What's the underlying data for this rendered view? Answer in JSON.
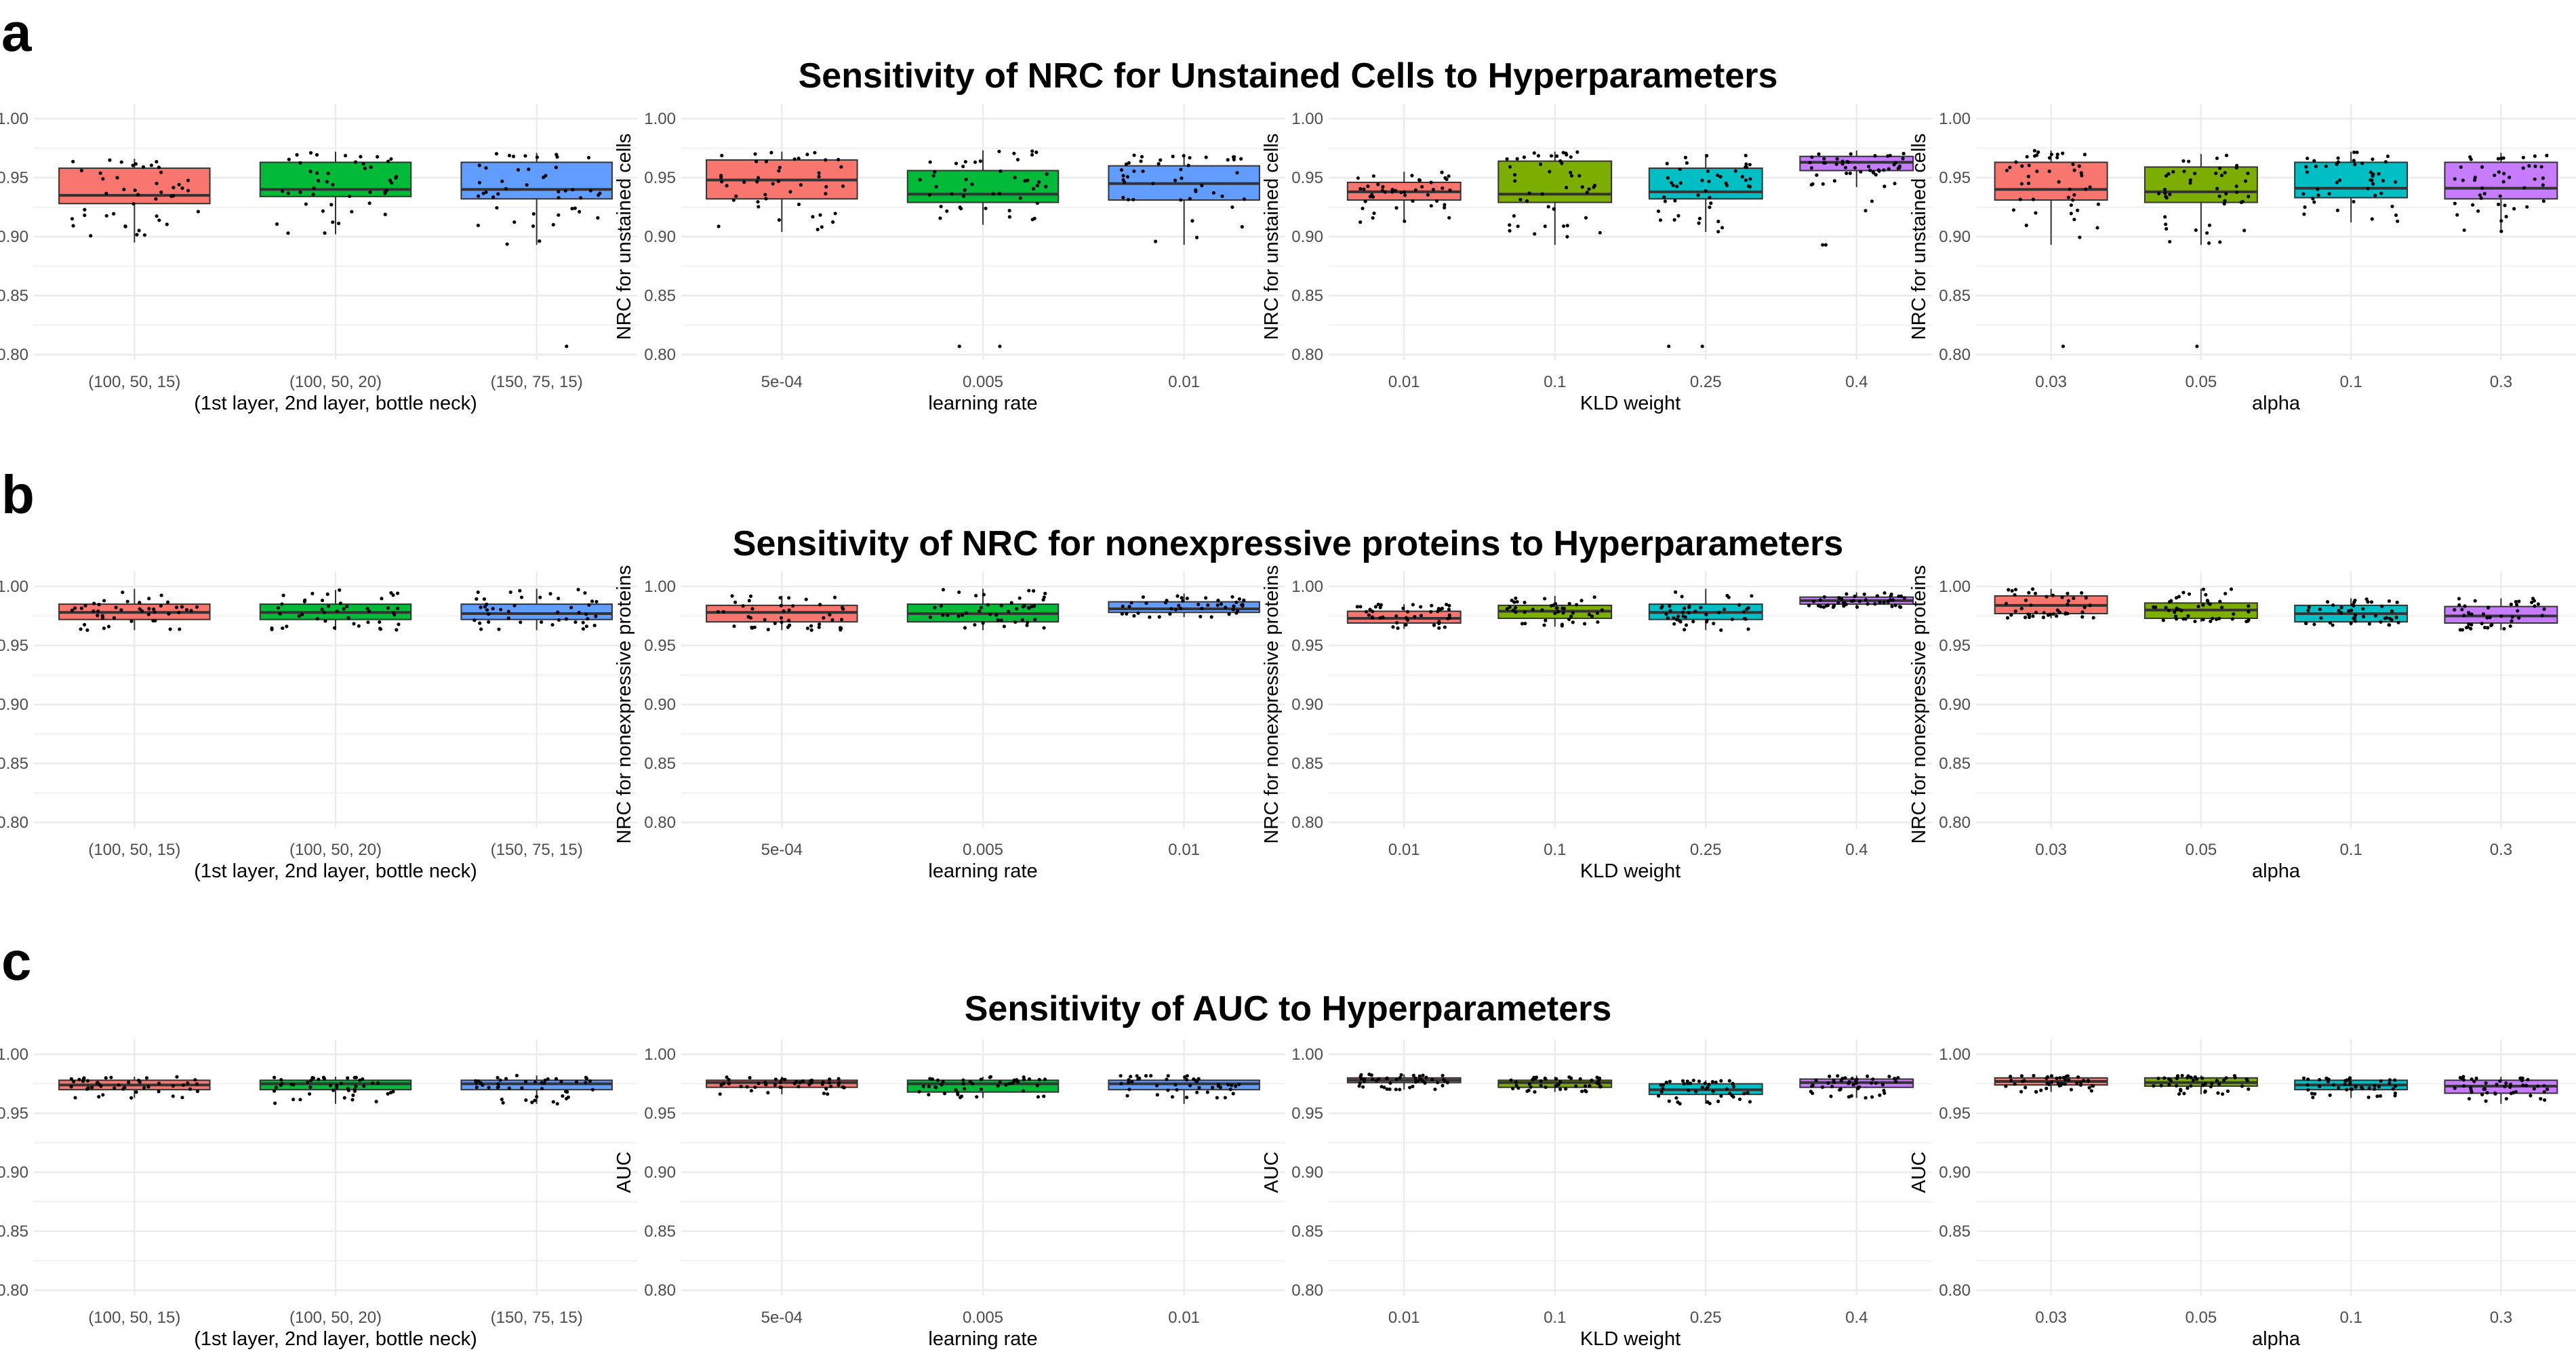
{
  "rows": [
    {
      "letter": "a",
      "title": "Sensitivity of NRC for Unstained Cells to Hyperparameters",
      "ylabel": "NRC for unstained cells"
    },
    {
      "letter": "b",
      "title": "Sensitivity of NRC for nonexpressive proteins to Hyperparameters",
      "ylabel": "NRC for nonexpressive proteins"
    },
    {
      "letter": "c",
      "title": "Sensitivity of AUC to Hyperparameters",
      "ylabel": "AUC"
    }
  ],
  "colors": {
    "three_groups": [
      "#F8766D",
      "#00BA38",
      "#619CFF"
    ],
    "four_groups": [
      "#F8766D",
      "#7CAE00",
      "#00BFC4",
      "#C77CFF"
    ],
    "grid": "#EBEBEB"
  },
  "chart_data": [
    {
      "type": "box",
      "row": "a",
      "xlabel": "(1st layer, 2nd layer, bottle neck)",
      "ylabel": "NRC for unstained cells",
      "categories": [
        "(100, 50, 15)",
        "(100, 50, 20)",
        "(150, 75, 15)"
      ],
      "ylim": [
        0.8,
        1.0
      ],
      "yticks": [
        "0.80",
        "0.85",
        "0.90",
        "0.95",
        "1.00"
      ],
      "boxes": [
        {
          "min": 0.895,
          "q1": 0.928,
          "median": 0.935,
          "q3": 0.958,
          "max": 0.966,
          "outliers": []
        },
        {
          "min": 0.902,
          "q1": 0.934,
          "median": 0.94,
          "q3": 0.963,
          "max": 0.972,
          "outliers": []
        },
        {
          "min": 0.893,
          "q1": 0.932,
          "median": 0.94,
          "q3": 0.963,
          "max": 0.971,
          "outliers": [
            0.807
          ]
        }
      ]
    },
    {
      "type": "box",
      "row": "a",
      "xlabel": "learning rate",
      "ylabel": "NRC for unstained cells",
      "categories": [
        "5e-04",
        "0.005",
        "0.01"
      ],
      "ylim": [
        0.8,
        1.0
      ],
      "yticks": [
        "0.80",
        "0.85",
        "0.90",
        "0.95",
        "1.00"
      ],
      "boxes": [
        {
          "min": 0.904,
          "q1": 0.932,
          "median": 0.948,
          "q3": 0.965,
          "max": 0.972,
          "outliers": []
        },
        {
          "min": 0.91,
          "q1": 0.929,
          "median": 0.936,
          "q3": 0.956,
          "max": 0.973,
          "outliers": [
            0.807,
            0.807
          ]
        },
        {
          "min": 0.893,
          "q1": 0.931,
          "median": 0.945,
          "q3": 0.96,
          "max": 0.97,
          "outliers": []
        }
      ]
    },
    {
      "type": "box",
      "row": "a",
      "xlabel": "KLD weight",
      "ylabel": "NRC for unstained cells",
      "categories": [
        "0.01",
        "0.1",
        "0.25",
        "0.4"
      ],
      "ylim": [
        0.8,
        1.0
      ],
      "yticks": [
        "0.80",
        "0.85",
        "0.90",
        "0.95",
        "1.00"
      ],
      "boxes": [
        {
          "min": 0.912,
          "q1": 0.931,
          "median": 0.938,
          "q3": 0.946,
          "max": 0.955,
          "outliers": []
        },
        {
          "min": 0.893,
          "q1": 0.929,
          "median": 0.936,
          "q3": 0.964,
          "max": 0.972,
          "outliers": []
        },
        {
          "min": 0.904,
          "q1": 0.932,
          "median": 0.938,
          "q3": 0.958,
          "max": 0.97,
          "outliers": [
            0.807,
            0.807
          ]
        },
        {
          "min": 0.942,
          "q1": 0.956,
          "median": 0.963,
          "q3": 0.968,
          "max": 0.973,
          "outliers": [
            0.893,
            0.893,
            0.922,
            0.93
          ]
        }
      ]
    },
    {
      "type": "box",
      "row": "a",
      "xlabel": "alpha",
      "ylabel": "NRC for unstained cells",
      "categories": [
        "0.03",
        "0.05",
        "0.1",
        "0.3"
      ],
      "ylim": [
        0.8,
        1.0
      ],
      "yticks": [
        "0.80",
        "0.85",
        "0.90",
        "0.95",
        "1.00"
      ],
      "boxes": [
        {
          "min": 0.893,
          "q1": 0.931,
          "median": 0.94,
          "q3": 0.963,
          "max": 0.973,
          "outliers": [
            0.807
          ]
        },
        {
          "min": 0.893,
          "q1": 0.929,
          "median": 0.938,
          "q3": 0.959,
          "max": 0.97,
          "outliers": [
            0.807
          ]
        },
        {
          "min": 0.912,
          "q1": 0.933,
          "median": 0.941,
          "q3": 0.963,
          "max": 0.972,
          "outliers": []
        },
        {
          "min": 0.904,
          "q1": 0.932,
          "median": 0.941,
          "q3": 0.963,
          "max": 0.971,
          "outliers": []
        }
      ]
    },
    {
      "type": "box",
      "row": "b",
      "xlabel": "(1st layer, 2nd layer, bottle neck)",
      "ylabel": "NRC for nonexpressive proteins",
      "categories": [
        "(100, 50, 15)",
        "(100, 50, 20)",
        "(150, 75, 15)"
      ],
      "ylim": [
        0.8,
        1.0
      ],
      "yticks": [
        "0.80",
        "0.85",
        "0.90",
        "0.95",
        "1.00"
      ],
      "boxes": [
        {
          "min": 0.963,
          "q1": 0.972,
          "median": 0.978,
          "q3": 0.985,
          "max": 0.998,
          "outliers": []
        },
        {
          "min": 0.963,
          "q1": 0.972,
          "median": 0.978,
          "q3": 0.985,
          "max": 0.997,
          "outliers": []
        },
        {
          "min": 0.963,
          "q1": 0.972,
          "median": 0.977,
          "q3": 0.985,
          "max": 0.998,
          "outliers": []
        }
      ]
    },
    {
      "type": "box",
      "row": "b",
      "xlabel": "learning rate",
      "ylabel": "NRC for nonexpressive proteins",
      "categories": [
        "5e-04",
        "0.005",
        "0.01"
      ],
      "ylim": [
        0.8,
        1.0
      ],
      "yticks": [
        "0.80",
        "0.85",
        "0.90",
        "0.95",
        "1.00"
      ],
      "boxes": [
        {
          "min": 0.963,
          "q1": 0.97,
          "median": 0.978,
          "q3": 0.984,
          "max": 0.992,
          "outliers": []
        },
        {
          "min": 0.963,
          "q1": 0.97,
          "median": 0.977,
          "q3": 0.985,
          "max": 0.998,
          "outliers": []
        },
        {
          "min": 0.974,
          "q1": 0.978,
          "median": 0.981,
          "q3": 0.987,
          "max": 0.994,
          "outliers": []
        }
      ]
    },
    {
      "type": "box",
      "row": "b",
      "xlabel": "KLD weight",
      "ylabel": "NRC for nonexpressive proteins",
      "categories": [
        "0.01",
        "0.1",
        "0.25",
        "0.4"
      ],
      "ylim": [
        0.8,
        1.0
      ],
      "yticks": [
        "0.80",
        "0.85",
        "0.90",
        "0.95",
        "1.00"
      ],
      "boxes": [
        {
          "min": 0.964,
          "q1": 0.969,
          "median": 0.973,
          "q3": 0.979,
          "max": 0.985,
          "outliers": []
        },
        {
          "min": 0.966,
          "q1": 0.973,
          "median": 0.979,
          "q3": 0.984,
          "max": 0.992,
          "outliers": []
        },
        {
          "min": 0.963,
          "q1": 0.972,
          "median": 0.978,
          "q3": 0.985,
          "max": 0.998,
          "outliers": []
        },
        {
          "min": 0.982,
          "q1": 0.985,
          "median": 0.988,
          "q3": 0.991,
          "max": 0.995,
          "outliers": []
        }
      ]
    },
    {
      "type": "box",
      "row": "b",
      "xlabel": "alpha",
      "ylabel": "NRC for nonexpressive proteins",
      "categories": [
        "0.03",
        "0.05",
        "0.1",
        "0.3"
      ],
      "ylim": [
        0.8,
        1.0
      ],
      "yticks": [
        "0.80",
        "0.85",
        "0.90",
        "0.95",
        "1.00"
      ],
      "boxes": [
        {
          "min": 0.973,
          "q1": 0.977,
          "median": 0.984,
          "q3": 0.992,
          "max": 0.998,
          "outliers": []
        },
        {
          "min": 0.97,
          "q1": 0.973,
          "median": 0.98,
          "q3": 0.986,
          "max": 0.998,
          "outliers": []
        },
        {
          "min": 0.967,
          "q1": 0.97,
          "median": 0.977,
          "q3": 0.984,
          "max": 0.99,
          "outliers": []
        },
        {
          "min": 0.963,
          "q1": 0.969,
          "median": 0.975,
          "q3": 0.983,
          "max": 0.99,
          "outliers": []
        }
      ]
    },
    {
      "type": "box",
      "row": "c",
      "xlabel": "(1st layer, 2nd layer, bottle neck)",
      "ylabel": "AUC",
      "categories": [
        "(100, 50, 15)",
        "(100, 50, 20)",
        "(150, 75, 15)"
      ],
      "ylim": [
        0.8,
        1.0
      ],
      "yticks": [
        "0.80",
        "0.85",
        "0.90",
        "0.95",
        "1.00"
      ],
      "boxes": [
        {
          "min": 0.963,
          "q1": 0.97,
          "median": 0.974,
          "q3": 0.978,
          "max": 0.981,
          "outliers": []
        },
        {
          "min": 0.958,
          "q1": 0.97,
          "median": 0.975,
          "q3": 0.978,
          "max": 0.981,
          "outliers": []
        },
        {
          "min": 0.958,
          "q1": 0.97,
          "median": 0.975,
          "q3": 0.978,
          "max": 0.982,
          "outliers": []
        }
      ]
    },
    {
      "type": "box",
      "row": "c",
      "xlabel": "learning rate",
      "ylabel": "AUC",
      "categories": [
        "5e-04",
        "0.005",
        "0.01"
      ],
      "ylim": [
        0.8,
        1.0
      ],
      "yticks": [
        "0.80",
        "0.85",
        "0.90",
        "0.95",
        "1.00"
      ],
      "boxes": [
        {
          "min": 0.966,
          "q1": 0.972,
          "median": 0.976,
          "q3": 0.978,
          "max": 0.981,
          "outliers": []
        },
        {
          "min": 0.963,
          "q1": 0.968,
          "median": 0.975,
          "q3": 0.978,
          "max": 0.981,
          "outliers": []
        },
        {
          "min": 0.958,
          "q1": 0.97,
          "median": 0.975,
          "q3": 0.978,
          "max": 0.982,
          "outliers": []
        }
      ]
    },
    {
      "type": "box",
      "row": "c",
      "xlabel": "KLD weight",
      "ylabel": "AUC",
      "categories": [
        "0.01",
        "0.1",
        "0.25",
        "0.4"
      ],
      "ylim": [
        0.8,
        1.0
      ],
      "yticks": [
        "0.80",
        "0.85",
        "0.90",
        "0.95",
        "1.00"
      ],
      "boxes": [
        {
          "min": 0.97,
          "q1": 0.976,
          "median": 0.978,
          "q3": 0.98,
          "max": 0.983,
          "outliers": []
        },
        {
          "min": 0.968,
          "q1": 0.972,
          "median": 0.976,
          "q3": 0.978,
          "max": 0.981,
          "outliers": []
        },
        {
          "min": 0.958,
          "q1": 0.966,
          "median": 0.97,
          "q3": 0.975,
          "max": 0.978,
          "outliers": []
        },
        {
          "min": 0.963,
          "q1": 0.972,
          "median": 0.976,
          "q3": 0.979,
          "max": 0.982,
          "outliers": []
        }
      ]
    },
    {
      "type": "box",
      "row": "c",
      "xlabel": "alpha",
      "ylabel": "AUC",
      "categories": [
        "0.03",
        "0.05",
        "0.1",
        "0.3"
      ],
      "ylim": [
        0.8,
        1.0
      ],
      "yticks": [
        "0.80",
        "0.85",
        "0.90",
        "0.95",
        "1.00"
      ],
      "boxes": [
        {
          "min": 0.968,
          "q1": 0.974,
          "median": 0.977,
          "q3": 0.98,
          "max": 0.982,
          "outliers": []
        },
        {
          "min": 0.966,
          "q1": 0.973,
          "median": 0.976,
          "q3": 0.98,
          "max": 0.982,
          "outliers": []
        },
        {
          "min": 0.963,
          "q1": 0.97,
          "median": 0.974,
          "q3": 0.978,
          "max": 0.981,
          "outliers": []
        },
        {
          "min": 0.958,
          "q1": 0.967,
          "median": 0.973,
          "q3": 0.978,
          "max": 0.981,
          "outliers": []
        }
      ]
    }
  ]
}
